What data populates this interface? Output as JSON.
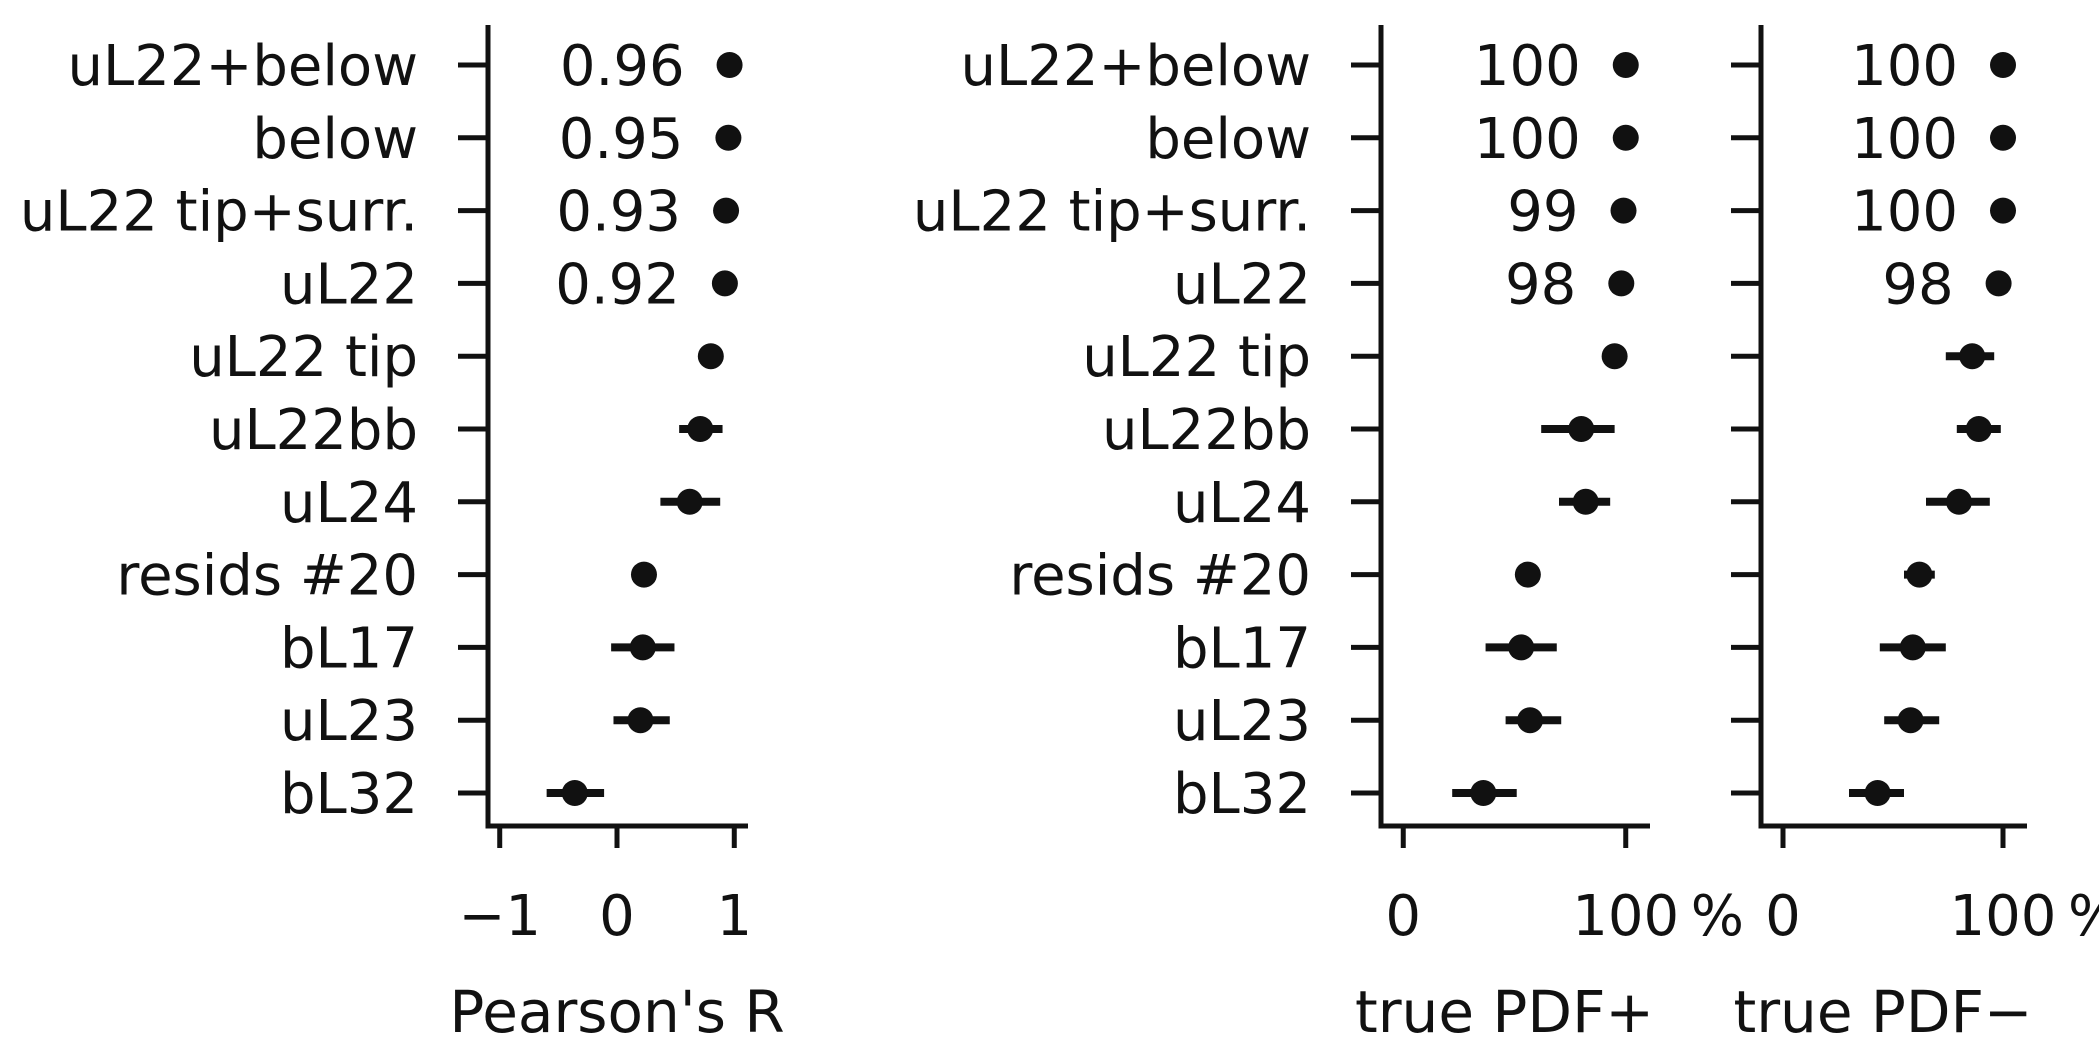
{
  "chart_data": [
    {
      "type": "scatter",
      "xlabel": "Pearson's R",
      "xlim": [
        -1.1,
        1.1
      ],
      "xticks": [
        -1,
        0,
        1
      ],
      "xtick_labels": [
        "−1",
        "0",
        "1"
      ],
      "unit_label": "",
      "categories": [
        "uL22+below",
        "below",
        "uL22 tip+surr.",
        "uL22",
        "uL22 tip",
        "uL22bb",
        "uL24",
        "resids #20",
        "bL17",
        "uL23",
        "bL32"
      ],
      "values": [
        0.96,
        0.95,
        0.93,
        0.92,
        0.8,
        0.71,
        0.62,
        0.23,
        0.22,
        0.2,
        -0.36
      ],
      "err_low": [
        0.96,
        0.95,
        0.93,
        0.92,
        0.78,
        0.53,
        0.37,
        0.13,
        -0.05,
        -0.03,
        -0.6
      ],
      "err_high": [
        0.96,
        0.95,
        0.93,
        0.92,
        0.82,
        0.9,
        0.88,
        0.32,
        0.49,
        0.45,
        -0.11
      ],
      "annotations": [
        "0.96",
        "0.95",
        "0.93",
        "0.92",
        "",
        "",
        "",
        "",
        "",
        "",
        ""
      ],
      "show_category_labels": true
    },
    {
      "type": "scatter",
      "xlabel": "true PDF+",
      "xlim": [
        -10,
        110
      ],
      "xticks": [
        0,
        100
      ],
      "xtick_labels": [
        "0",
        "100"
      ],
      "unit_label": "%",
      "categories": [
        "uL22+below",
        "below",
        "uL22 tip+surr.",
        "uL22",
        "uL22 tip",
        "uL22bb",
        "uL24",
        "resids #20",
        "bL17",
        "uL23",
        "bL32"
      ],
      "values": [
        100,
        100,
        99,
        98,
        95,
        80,
        82,
        56,
        53,
        57,
        36
      ],
      "err_low": [
        100,
        100,
        99,
        98,
        92,
        62,
        70,
        52,
        37,
        46,
        22
      ],
      "err_high": [
        100,
        100,
        99,
        98,
        97,
        95,
        93,
        60,
        69,
        71,
        51
      ],
      "annotations": [
        "100",
        "100",
        "99",
        "98",
        "",
        "",
        "",
        "",
        "",
        "",
        ""
      ],
      "show_category_labels": true
    },
    {
      "type": "scatter",
      "xlabel": "true PDF−",
      "xlim": [
        -10,
        110
      ],
      "xticks": [
        0,
        100
      ],
      "xtick_labels": [
        "0",
        "100"
      ],
      "unit_label": "%",
      "categories": [
        "uL22+below",
        "below",
        "uL22 tip+surr.",
        "uL22",
        "uL22 tip",
        "uL22bb",
        "uL24",
        "resids #20",
        "bL17",
        "uL23",
        "bL32"
      ],
      "values": [
        100,
        100,
        100,
        98,
        86,
        89,
        80,
        62,
        59,
        58,
        43
      ],
      "err_low": [
        100,
        100,
        100,
        98,
        74,
        79,
        65,
        55,
        44,
        46,
        30
      ],
      "err_high": [
        100,
        100,
        100,
        98,
        96,
        99,
        94,
        69,
        74,
        71,
        55
      ],
      "annotations": [
        "100",
        "100",
        "100",
        "98",
        "",
        "",
        "",
        "",
        "",
        "",
        ""
      ],
      "show_category_labels": false
    }
  ],
  "style": {
    "mark_color": "#111111",
    "axis_color": "#111111"
  }
}
